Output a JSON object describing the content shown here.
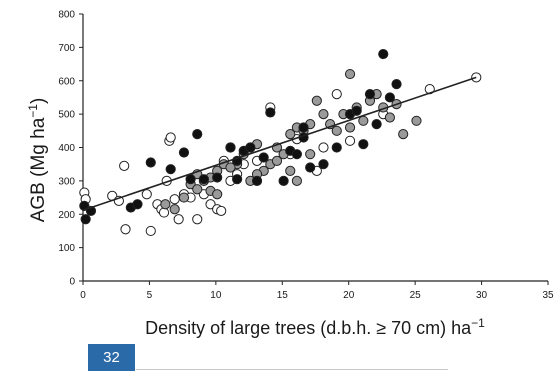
{
  "chart_data": {
    "type": "scatter",
    "xlabel": "Density of large trees (d.b.h. ≥ 70 cm) ha",
    "xlabel_sup": "−1",
    "ylabel": "AGB (Mg ha",
    "ylabel_sup": "−1",
    "ylabel_close": ")",
    "xlim": [
      0,
      35
    ],
    "ylim": [
      0,
      800
    ],
    "xticks": [
      "0",
      "5",
      "10",
      "15",
      "20",
      "25",
      "30",
      "35"
    ],
    "yticks": [
      "0",
      "100",
      "200",
      "300",
      "400",
      "500",
      "600",
      "700",
      "800"
    ],
    "grid": false,
    "legend": "none",
    "series_colors": {
      "open": "#ffffff",
      "grey": "#9a9a9a",
      "black": "#111111"
    },
    "series": [
      {
        "marker": "open",
        "points": [
          [
            0.1,
            265
          ],
          [
            0.2,
            245
          ],
          [
            2.2,
            255
          ],
          [
            2.7,
            240
          ],
          [
            3.1,
            345
          ],
          [
            3.2,
            155
          ],
          [
            4.8,
            260
          ],
          [
            5.1,
            150
          ],
          [
            5.6,
            230
          ],
          [
            5.9,
            215
          ],
          [
            6.1,
            205
          ],
          [
            6.3,
            300
          ],
          [
            6.5,
            420
          ],
          [
            6.6,
            430
          ],
          [
            6.9,
            245
          ],
          [
            7.2,
            185
          ],
          [
            7.6,
            260
          ],
          [
            8.1,
            250
          ],
          [
            8.6,
            185
          ],
          [
            9.1,
            260
          ],
          [
            9.6,
            230
          ],
          [
            10.1,
            215
          ],
          [
            10.4,
            210
          ],
          [
            10.6,
            360
          ],
          [
            11.1,
            300
          ],
          [
            11.6,
            320
          ],
          [
            12.1,
            350
          ],
          [
            13.1,
            360
          ],
          [
            14.1,
            520
          ],
          [
            15.6,
            380
          ],
          [
            16.1,
            425
          ],
          [
            17.6,
            330
          ],
          [
            18.1,
            400
          ],
          [
            19.1,
            560
          ],
          [
            20.1,
            420
          ],
          [
            22.6,
            500
          ],
          [
            26.1,
            575
          ],
          [
            29.6,
            610
          ]
        ]
      },
      {
        "marker": "grey",
        "points": [
          [
            6.2,
            230
          ],
          [
            6.9,
            215
          ],
          [
            7.6,
            250
          ],
          [
            8.1,
            290
          ],
          [
            8.6,
            275
          ],
          [
            9.1,
            300
          ],
          [
            9.6,
            270
          ],
          [
            10.1,
            260
          ],
          [
            10.6,
            350
          ],
          [
            11.1,
            400
          ],
          [
            11.6,
            350
          ],
          [
            12.1,
            380
          ],
          [
            12.6,
            400
          ],
          [
            13.1,
            410
          ],
          [
            13.6,
            330
          ],
          [
            14.1,
            350
          ],
          [
            14.6,
            400
          ],
          [
            15.1,
            380
          ],
          [
            15.6,
            440
          ],
          [
            16.1,
            460
          ],
          [
            16.6,
            450
          ],
          [
            17.1,
            470
          ],
          [
            17.6,
            540
          ],
          [
            18.1,
            500
          ],
          [
            18.6,
            470
          ],
          [
            19.1,
            450
          ],
          [
            19.6,
            500
          ],
          [
            20.1,
            460
          ],
          [
            20.6,
            520
          ],
          [
            21.1,
            480
          ],
          [
            21.6,
            540
          ],
          [
            22.1,
            560
          ],
          [
            22.6,
            520
          ],
          [
            23.1,
            490
          ],
          [
            23.6,
            530
          ],
          [
            24.1,
            440
          ],
          [
            25.1,
            480
          ],
          [
            20.1,
            620
          ],
          [
            16.1,
            300
          ],
          [
            15.6,
            330
          ],
          [
            17.1,
            380
          ],
          [
            14.6,
            360
          ],
          [
            13.1,
            320
          ],
          [
            12.6,
            300
          ],
          [
            11.1,
            340
          ],
          [
            10.1,
            330
          ],
          [
            9.6,
            310
          ],
          [
            8.6,
            320
          ]
        ]
      },
      {
        "marker": "black",
        "points": [
          [
            0.1,
            225
          ],
          [
            0.2,
            185
          ],
          [
            0.6,
            210
          ],
          [
            3.6,
            220
          ],
          [
            4.1,
            230
          ],
          [
            5.1,
            355
          ],
          [
            6.6,
            335
          ],
          [
            7.6,
            385
          ],
          [
            8.1,
            305
          ],
          [
            8.6,
            440
          ],
          [
            9.1,
            305
          ],
          [
            10.1,
            310
          ],
          [
            11.1,
            400
          ],
          [
            11.6,
            305
          ],
          [
            12.1,
            390
          ],
          [
            13.1,
            300
          ],
          [
            14.1,
            505
          ],
          [
            15.1,
            300
          ],
          [
            15.6,
            390
          ],
          [
            16.1,
            380
          ],
          [
            16.6,
            460
          ],
          [
            17.1,
            340
          ],
          [
            18.1,
            350
          ],
          [
            19.1,
            400
          ],
          [
            20.1,
            500
          ],
          [
            20.6,
            510
          ],
          [
            21.1,
            410
          ],
          [
            21.6,
            560
          ],
          [
            22.1,
            470
          ],
          [
            22.6,
            680
          ],
          [
            23.1,
            550
          ],
          [
            23.6,
            590
          ],
          [
            16.6,
            430
          ],
          [
            13.6,
            370
          ],
          [
            12.6,
            400
          ],
          [
            11.6,
            360
          ]
        ]
      }
    ],
    "trendline": {
      "x": [
        0,
        29.6
      ],
      "y": [
        212,
        610
      ]
    }
  },
  "page": {
    "number": "32",
    "badge_color": "#2a6aa8"
  }
}
